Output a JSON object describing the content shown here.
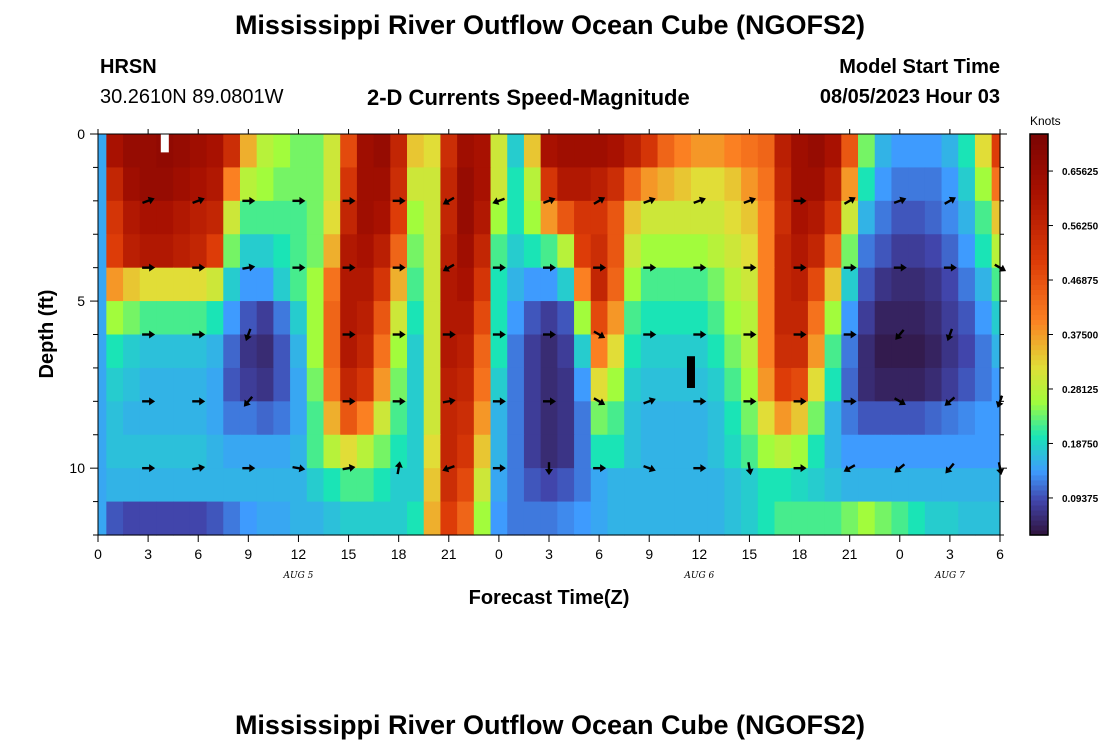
{
  "header": {
    "title": "Mississippi River Outflow Ocean Cube (NGOFS2)",
    "station": "HRSN",
    "coords": "30.2610N  89.0801W",
    "subtitle": "2-D Currents Speed-Magnitude",
    "model_start_label": "Model Start Time",
    "model_start_value": "08/05/2023 Hour 03"
  },
  "footer": {
    "title": "Mississippi River Outflow Ocean Cube (NGOFS2)"
  },
  "chart_data": {
    "type": "heatmap",
    "title": "2-D Currents Speed-Magnitude",
    "xlabel": "Forecast Time(Z)",
    "ylabel": "Depth (ft)",
    "x_ticks": [
      "0",
      "3",
      "6",
      "9",
      "12",
      "15",
      "18",
      "21",
      "0",
      "3",
      "6",
      "9",
      "12",
      "15",
      "18",
      "21",
      "0",
      "3",
      "6"
    ],
    "x_range_hours": [
      0,
      54
    ],
    "date_labels": [
      {
        "text": "AUG 5",
        "hour": 12
      },
      {
        "text": "AUG 6",
        "hour": 36
      },
      {
        "text": "AUG 7",
        "hour": 51
      }
    ],
    "y_ticks": [
      0,
      5,
      10
    ],
    "y_range_ft": [
      0,
      12
    ],
    "depth_levels_ft": [
      0.5,
      1.5,
      2.5,
      3.5,
      4.5,
      5.5,
      6.5,
      7.5,
      8.5,
      9.5,
      10.5,
      11.5
    ],
    "colorbar": {
      "unit": "Knots",
      "range": [
        0.03,
        0.72
      ],
      "ticks": [
        "0.65625",
        "0.56250",
        "0.46875",
        "0.37500",
        "0.28125",
        "0.18750",
        "0.09375"
      ],
      "tick_values": [
        0.65625,
        0.5625,
        0.46875,
        0.375,
        0.28125,
        0.1875,
        0.09375
      ]
    },
    "hour_columns": [
      0,
      1,
      2,
      3,
      4,
      5,
      6,
      7,
      8,
      9,
      10,
      11,
      12,
      13,
      14,
      15,
      16,
      17,
      18,
      19,
      20,
      21,
      22,
      23,
      24,
      25,
      26,
      27,
      28,
      29,
      30,
      31,
      32,
      33,
      34,
      35,
      36,
      37,
      38,
      39,
      40,
      41,
      42,
      43,
      44,
      45,
      46,
      47,
      48,
      49,
      50,
      51,
      52,
      53,
      54
    ],
    "speed_knots": [
      [
        0.15,
        0.62,
        0.66,
        0.66,
        0.67,
        0.66,
        0.64,
        0.62,
        0.54,
        0.36,
        0.28,
        0.26,
        0.24,
        0.24,
        0.3,
        0.48,
        0.64,
        0.66,
        0.56,
        0.34,
        0.32,
        0.54,
        0.64,
        0.62,
        0.3,
        0.18,
        0.34,
        0.62,
        0.64,
        0.64,
        0.64,
        0.62,
        0.58,
        0.52,
        0.44,
        0.4,
        0.38,
        0.38,
        0.4,
        0.42,
        0.44,
        0.58,
        0.64,
        0.66,
        0.62,
        0.46,
        0.24,
        0.16,
        0.14,
        0.14,
        0.14,
        0.16,
        0.2,
        0.32,
        0.5
      ],
      [
        0.15,
        0.56,
        0.64,
        0.66,
        0.66,
        0.64,
        0.62,
        0.6,
        0.4,
        0.28,
        0.26,
        0.24,
        0.24,
        0.24,
        0.3,
        0.52,
        0.64,
        0.64,
        0.54,
        0.3,
        0.3,
        0.56,
        0.66,
        0.62,
        0.3,
        0.2,
        0.28,
        0.52,
        0.6,
        0.6,
        0.58,
        0.54,
        0.44,
        0.38,
        0.36,
        0.34,
        0.32,
        0.32,
        0.34,
        0.38,
        0.42,
        0.56,
        0.64,
        0.64,
        0.58,
        0.38,
        0.2,
        0.14,
        0.12,
        0.12,
        0.12,
        0.14,
        0.18,
        0.26,
        0.42
      ],
      [
        0.15,
        0.52,
        0.6,
        0.62,
        0.62,
        0.6,
        0.58,
        0.56,
        0.3,
        0.22,
        0.22,
        0.22,
        0.22,
        0.24,
        0.32,
        0.56,
        0.64,
        0.62,
        0.5,
        0.26,
        0.3,
        0.56,
        0.66,
        0.6,
        0.26,
        0.2,
        0.26,
        0.38,
        0.46,
        0.52,
        0.52,
        0.46,
        0.34,
        0.3,
        0.3,
        0.3,
        0.3,
        0.3,
        0.32,
        0.34,
        0.4,
        0.54,
        0.62,
        0.6,
        0.52,
        0.3,
        0.16,
        0.12,
        0.1,
        0.1,
        0.11,
        0.13,
        0.16,
        0.22,
        0.34
      ],
      [
        0.15,
        0.5,
        0.58,
        0.6,
        0.6,
        0.58,
        0.56,
        0.5,
        0.24,
        0.18,
        0.18,
        0.2,
        0.22,
        0.24,
        0.36,
        0.6,
        0.62,
        0.58,
        0.44,
        0.24,
        0.3,
        0.58,
        0.64,
        0.56,
        0.22,
        0.18,
        0.2,
        0.22,
        0.28,
        0.5,
        0.54,
        0.46,
        0.3,
        0.26,
        0.26,
        0.26,
        0.26,
        0.28,
        0.3,
        0.32,
        0.4,
        0.56,
        0.6,
        0.56,
        0.44,
        0.24,
        0.12,
        0.1,
        0.08,
        0.08,
        0.09,
        0.11,
        0.14,
        0.2,
        0.28
      ],
      [
        0.15,
        0.38,
        0.34,
        0.32,
        0.32,
        0.32,
        0.32,
        0.3,
        0.18,
        0.14,
        0.14,
        0.18,
        0.22,
        0.26,
        0.42,
        0.6,
        0.6,
        0.52,
        0.36,
        0.22,
        0.3,
        0.6,
        0.62,
        0.52,
        0.2,
        0.16,
        0.14,
        0.14,
        0.18,
        0.4,
        0.56,
        0.44,
        0.26,
        0.22,
        0.22,
        0.22,
        0.22,
        0.24,
        0.28,
        0.3,
        0.4,
        0.56,
        0.58,
        0.48,
        0.34,
        0.18,
        0.1,
        0.07,
        0.06,
        0.06,
        0.07,
        0.09,
        0.12,
        0.16,
        0.22
      ],
      [
        0.15,
        0.26,
        0.24,
        0.22,
        0.22,
        0.22,
        0.22,
        0.2,
        0.14,
        0.1,
        0.08,
        0.12,
        0.18,
        0.26,
        0.44,
        0.6,
        0.58,
        0.46,
        0.3,
        0.2,
        0.3,
        0.6,
        0.6,
        0.48,
        0.2,
        0.14,
        0.1,
        0.08,
        0.1,
        0.26,
        0.48,
        0.38,
        0.22,
        0.2,
        0.2,
        0.2,
        0.2,
        0.22,
        0.26,
        0.28,
        0.4,
        0.56,
        0.56,
        0.42,
        0.26,
        0.14,
        0.08,
        0.05,
        0.05,
        0.05,
        0.06,
        0.08,
        0.1,
        0.14,
        0.18
      ],
      [
        0.15,
        0.2,
        0.18,
        0.17,
        0.17,
        0.17,
        0.17,
        0.16,
        0.11,
        0.07,
        0.06,
        0.1,
        0.16,
        0.26,
        0.44,
        0.6,
        0.56,
        0.42,
        0.26,
        0.18,
        0.3,
        0.6,
        0.58,
        0.44,
        0.2,
        0.12,
        0.08,
        0.06,
        0.08,
        0.18,
        0.4,
        0.32,
        0.2,
        0.18,
        0.18,
        0.18,
        0.18,
        0.2,
        0.24,
        0.28,
        0.4,
        0.54,
        0.54,
        0.38,
        0.22,
        0.12,
        0.06,
        0.04,
        0.04,
        0.04,
        0.05,
        0.07,
        0.09,
        0.12,
        0.16
      ],
      [
        0.15,
        0.18,
        0.17,
        0.16,
        0.16,
        0.16,
        0.16,
        0.15,
        0.1,
        0.08,
        0.07,
        0.1,
        0.15,
        0.24,
        0.42,
        0.56,
        0.52,
        0.38,
        0.24,
        0.18,
        0.3,
        0.58,
        0.56,
        0.42,
        0.18,
        0.12,
        0.08,
        0.06,
        0.07,
        0.14,
        0.32,
        0.26,
        0.18,
        0.17,
        0.17,
        0.17,
        0.17,
        0.18,
        0.22,
        0.26,
        0.38,
        0.5,
        0.48,
        0.32,
        0.2,
        0.11,
        0.06,
        0.05,
        0.05,
        0.05,
        0.06,
        0.08,
        0.1,
        0.12,
        0.14
      ],
      [
        0.15,
        0.17,
        0.16,
        0.16,
        0.16,
        0.16,
        0.16,
        0.15,
        0.12,
        0.12,
        0.11,
        0.12,
        0.15,
        0.22,
        0.36,
        0.46,
        0.4,
        0.3,
        0.22,
        0.18,
        0.3,
        0.56,
        0.54,
        0.38,
        0.16,
        0.12,
        0.08,
        0.06,
        0.07,
        0.12,
        0.24,
        0.22,
        0.17,
        0.16,
        0.16,
        0.16,
        0.16,
        0.17,
        0.2,
        0.24,
        0.32,
        0.38,
        0.34,
        0.24,
        0.16,
        0.12,
        0.1,
        0.1,
        0.1,
        0.1,
        0.11,
        0.12,
        0.13,
        0.14,
        0.14
      ],
      [
        0.15,
        0.17,
        0.17,
        0.17,
        0.17,
        0.17,
        0.17,
        0.16,
        0.15,
        0.15,
        0.15,
        0.15,
        0.16,
        0.22,
        0.28,
        0.32,
        0.28,
        0.24,
        0.2,
        0.18,
        0.32,
        0.56,
        0.52,
        0.34,
        0.16,
        0.12,
        0.08,
        0.06,
        0.07,
        0.12,
        0.2,
        0.2,
        0.17,
        0.16,
        0.16,
        0.16,
        0.16,
        0.17,
        0.19,
        0.22,
        0.26,
        0.28,
        0.26,
        0.2,
        0.16,
        0.14,
        0.14,
        0.14,
        0.14,
        0.14,
        0.14,
        0.14,
        0.14,
        0.14,
        0.14
      ],
      [
        0.15,
        0.16,
        0.16,
        0.16,
        0.16,
        0.16,
        0.16,
        0.16,
        0.16,
        0.16,
        0.16,
        0.16,
        0.16,
        0.18,
        0.2,
        0.22,
        0.22,
        0.2,
        0.18,
        0.18,
        0.34,
        0.54,
        0.48,
        0.3,
        0.15,
        0.12,
        0.1,
        0.09,
        0.1,
        0.12,
        0.15,
        0.16,
        0.16,
        0.16,
        0.16,
        0.16,
        0.16,
        0.16,
        0.17,
        0.18,
        0.2,
        0.2,
        0.19,
        0.18,
        0.17,
        0.16,
        0.16,
        0.16,
        0.16,
        0.16,
        0.16,
        0.16,
        0.16,
        0.16,
        0.16
      ],
      [
        0.15,
        0.1,
        0.09,
        0.09,
        0.09,
        0.09,
        0.09,
        0.1,
        0.12,
        0.14,
        0.15,
        0.15,
        0.16,
        0.16,
        0.17,
        0.18,
        0.18,
        0.18,
        0.18,
        0.2,
        0.36,
        0.5,
        0.44,
        0.26,
        0.14,
        0.12,
        0.12,
        0.12,
        0.13,
        0.14,
        0.15,
        0.16,
        0.16,
        0.16,
        0.16,
        0.16,
        0.16,
        0.16,
        0.17,
        0.18,
        0.2,
        0.22,
        0.22,
        0.22,
        0.22,
        0.24,
        0.26,
        0.24,
        0.22,
        0.2,
        0.18,
        0.18,
        0.17,
        0.17,
        0.17
      ]
    ],
    "vector_hours": [
      3,
      6,
      9,
      12,
      15,
      18,
      21,
      24,
      27,
      30,
      33,
      36,
      39,
      42,
      45,
      48,
      51,
      54
    ],
    "vector_depths_ft": [
      2,
      4,
      6,
      8,
      10
    ],
    "vector_direction_deg": [
      [
        20,
        20,
        0,
        0,
        0,
        0,
        210,
        200,
        20,
        30,
        20,
        20,
        20,
        0,
        30,
        20,
        30,
        null
      ],
      [
        0,
        0,
        10,
        0,
        0,
        0,
        210,
        0,
        0,
        0,
        0,
        0,
        0,
        0,
        0,
        0,
        0,
        -30
      ],
      [
        0,
        0,
        250,
        null,
        0,
        0,
        0,
        0,
        0,
        330,
        0,
        0,
        0,
        0,
        0,
        230,
        250,
        null
      ],
      [
        0,
        0,
        230,
        null,
        0,
        0,
        10,
        0,
        0,
        -30,
        20,
        0,
        0,
        0,
        0,
        -30,
        220,
        250
      ],
      [
        0,
        10,
        0,
        -10,
        10,
        80,
        200,
        0,
        -90,
        0,
        -20,
        0,
        -80,
        0,
        210,
        220,
        230,
        -80
      ]
    ],
    "markers": [
      {
        "type": "missing-value",
        "hour": 4,
        "depth_ft_top": 0.0,
        "depth_ft_bottom": 0.55,
        "color": "#ffffff"
      },
      {
        "type": "missing-value",
        "hour": 35.5,
        "depth_ft_top": 6.65,
        "depth_ft_bottom": 7.6,
        "color": "#000000"
      }
    ],
    "colormap_stops": [
      {
        "v": 0.03,
        "c": "#30123b"
      },
      {
        "v": 0.09,
        "c": "#4145ab"
      },
      {
        "v": 0.14,
        "c": "#3e9bfe"
      },
      {
        "v": 0.2,
        "c": "#1ae4b6"
      },
      {
        "v": 0.26,
        "c": "#a2fc3c"
      },
      {
        "v": 0.32,
        "c": "#e1dd37"
      },
      {
        "v": 0.4,
        "c": "#fb8022"
      },
      {
        "v": 0.5,
        "c": "#dd3c08"
      },
      {
        "v": 0.62,
        "c": "#a81101"
      },
      {
        "v": 0.72,
        "c": "#7a0403"
      }
    ]
  }
}
